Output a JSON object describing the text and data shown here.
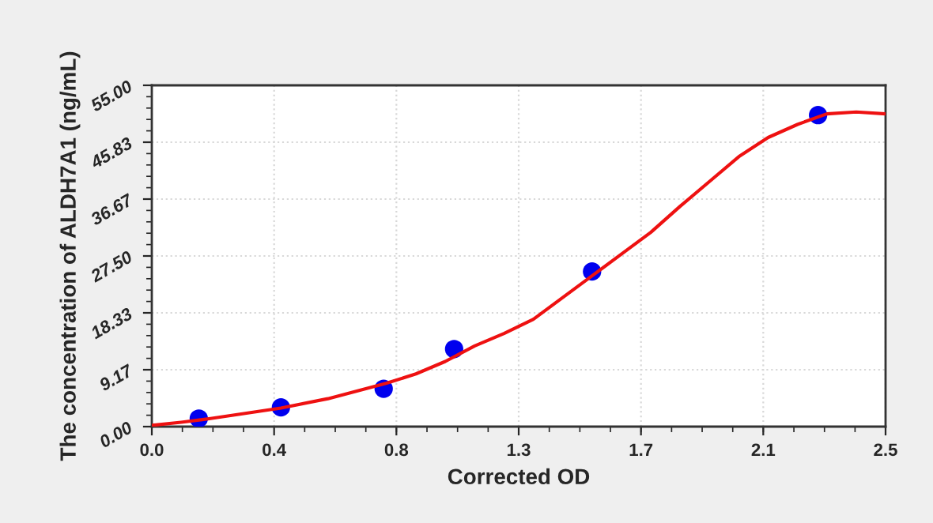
{
  "chart_data": {
    "type": "scatter",
    "xlabel": "Corrected OD",
    "ylabel": "The concentration of ALDH7A1 (ng/mL)",
    "series": [
      {
        "color": "#0000ee",
        "marker": "circle",
        "x": [
          0.16,
          0.44,
          0.79,
          1.03,
          1.5,
          2.27
        ],
        "values": [
          1.3,
          3.1,
          6.1,
          12.5,
          25.0,
          50.2
        ]
      },
      {
        "type": "line",
        "color": "#ee1111",
        "marker": "none",
        "line_style": "solid",
        "x": [
          0.0,
          0.1,
          0.2,
          0.3,
          0.44,
          0.6,
          0.8,
          0.9,
          1.0,
          1.1,
          1.2,
          1.3,
          1.4,
          1.5,
          1.6,
          1.7,
          1.8,
          1.9,
          2.0,
          2.1,
          2.2,
          2.3,
          2.4,
          2.5
        ],
        "values": [
          0.2,
          0.7,
          1.3,
          2.0,
          3.0,
          4.5,
          7.0,
          8.5,
          10.5,
          13.0,
          15.0,
          17.3,
          20.8,
          24.3,
          27.8,
          31.3,
          35.5,
          39.5,
          43.5,
          46.6,
          48.7,
          50.4,
          50.7,
          50.4
        ]
      }
    ],
    "xlim": [
      0,
      2.5
    ],
    "xticks": [
      {
        "value": 0,
        "label": "0.0"
      },
      {
        "value": 0.4167,
        "label": "0.4"
      },
      {
        "value": 0.8333,
        "label": "0.8"
      },
      {
        "value": 1.25,
        "label": "1.3"
      },
      {
        "value": 1.6667,
        "label": "1.7"
      },
      {
        "value": 2.0833,
        "label": "2.1"
      },
      {
        "value": 2.5,
        "label": "2.5"
      }
    ],
    "ylim": [
      0,
      55
    ],
    "yticks": [
      {
        "value": 0,
        "label": "0.00"
      },
      {
        "value": 9.1667,
        "label": "9.17"
      },
      {
        "value": 18.3333,
        "label": "18.33"
      },
      {
        "value": 27.5,
        "label": "27.50"
      },
      {
        "value": 36.6667,
        "label": "36.67"
      },
      {
        "value": 45.8333,
        "label": "45.83"
      },
      {
        "value": 55,
        "label": "55.00"
      }
    ],
    "grid": true,
    "legend": false
  }
}
